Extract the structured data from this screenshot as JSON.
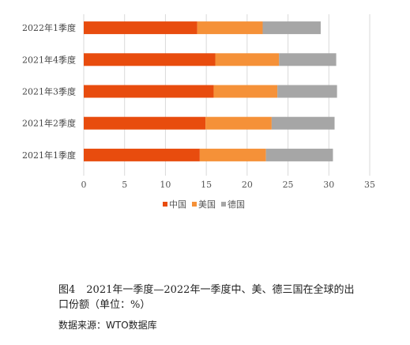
{
  "chart_data": {
    "type": "bar",
    "orientation": "horizontal",
    "stacked": true,
    "categories": [
      "2022年1季度",
      "2021年4季度",
      "2021年3季度",
      "2021年2季度",
      "2021年1季度"
    ],
    "series": [
      {
        "name": "中国",
        "color": "#e84c0e",
        "values": [
          13.9,
          16.1,
          15.9,
          14.9,
          14.2
        ]
      },
      {
        "name": "美国",
        "color": "#f59138",
        "values": [
          8.0,
          7.8,
          7.8,
          8.1,
          8.1
        ]
      },
      {
        "name": "德国",
        "color": "#a6a6a6",
        "values": [
          7.1,
          7.0,
          7.3,
          7.7,
          8.2
        ]
      }
    ],
    "xlim": [
      0,
      35
    ],
    "xticks": [
      "0",
      "5",
      "10",
      "15",
      "20",
      "25",
      "30",
      "35"
    ],
    "legend_position": "bottom",
    "grid": "vertical"
  },
  "caption": {
    "figure_label": "图4",
    "text": "2021年一季度—2022年一季度中、美、德三国在全球的出口份额（单位：%）"
  },
  "source": "数据来源：WTO数据库"
}
